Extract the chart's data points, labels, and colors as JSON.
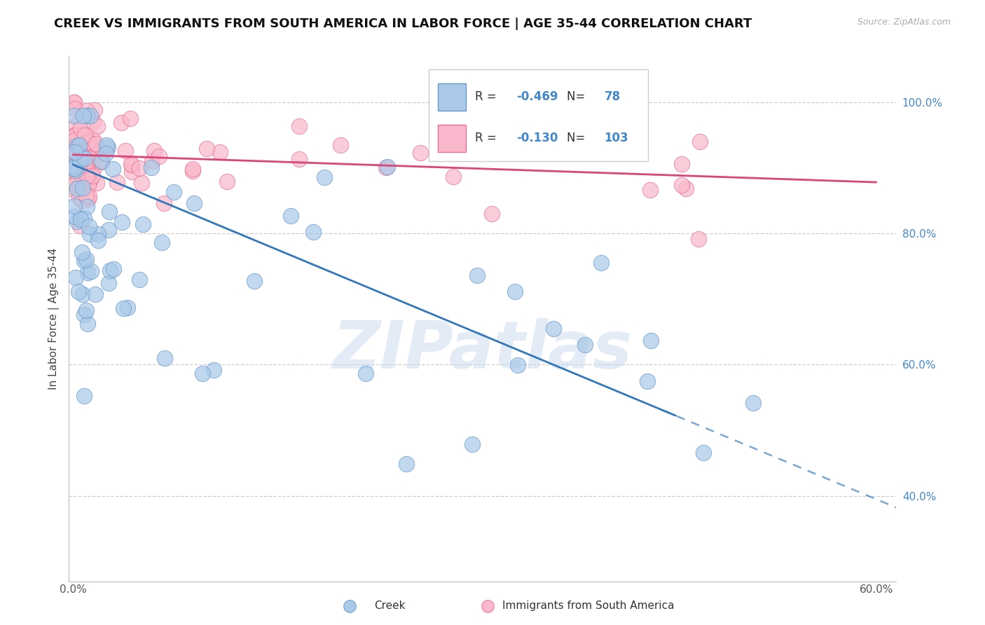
{
  "title": "CREEK VS IMMIGRANTS FROM SOUTH AMERICA IN LABOR FORCE | AGE 35-44 CORRELATION CHART",
  "source": "Source: ZipAtlas.com",
  "ylabel": "In Labor Force | Age 35-44",
  "xlim": [
    -0.003,
    0.615
  ],
  "ylim": [
    0.27,
    1.07
  ],
  "xtick_vals": [
    0.0,
    0.1,
    0.2,
    0.3,
    0.4,
    0.5,
    0.6
  ],
  "xtick_labels": [
    "0.0%",
    "",
    "",
    "",
    "",
    "",
    "60.0%"
  ],
  "ytick_vals": [
    0.4,
    0.6,
    0.8,
    1.0
  ],
  "ytick_labels": [
    "40.0%",
    "60.0%",
    "80.0%",
    "100.0%"
  ],
  "creek_R": -0.469,
  "creek_N": 78,
  "sa_R": -0.13,
  "sa_N": 103,
  "creek_fill": "#aac9e8",
  "creek_edge": "#6699cc",
  "sa_fill": "#f9b8cb",
  "sa_edge": "#e87090",
  "creek_line_color": "#3377bb",
  "sa_line_color": "#dd4477",
  "creek_line_y0": 0.905,
  "creek_line_y1": 0.395,
  "sa_line_y0": 0.92,
  "sa_line_y1": 0.878,
  "watermark": "ZIPatlas",
  "legend_label_creek": "Creek",
  "legend_label_sa": "Immigrants from South America",
  "ytick_color": "#4488cc",
  "xtick_color": "#555555",
  "background_color": "#ffffff",
  "grid_color": "#cccccc",
  "title_fontsize": 13,
  "label_fontsize": 11,
  "tick_fontsize": 11,
  "legend_fontsize": 13
}
